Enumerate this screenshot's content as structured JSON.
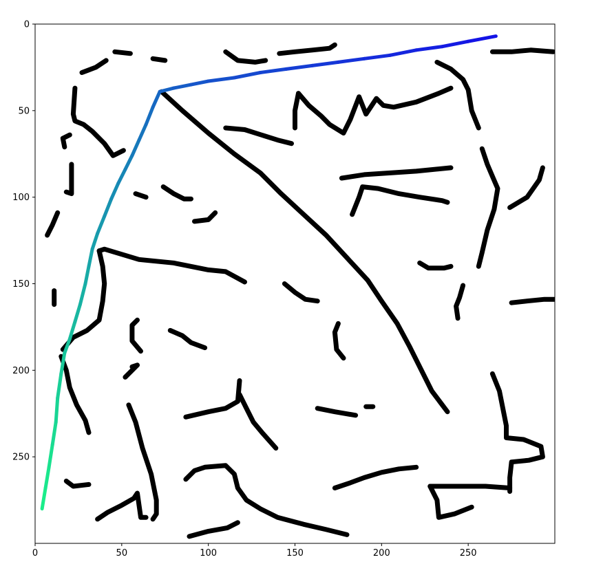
{
  "chart_data": {
    "type": "image-plot",
    "title": "",
    "xlabel": "",
    "ylabel": "",
    "xlim": [
      0,
      300
    ],
    "ylim": [
      300,
      0
    ],
    "xticks": [
      0,
      50,
      100,
      150,
      200,
      250
    ],
    "yticks": [
      0,
      50,
      100,
      150,
      200,
      250
    ],
    "grid": false,
    "ink_color": "#000000",
    "path_color_start": "#1aed8a",
    "path_color_end": "#1414e6",
    "path": [
      [
        4,
        280
      ],
      [
        6,
        268
      ],
      [
        8,
        256
      ],
      [
        10,
        243
      ],
      [
        12,
        230
      ],
      [
        13,
        216
      ],
      [
        15,
        202
      ],
      [
        17,
        190
      ],
      [
        20,
        182
      ],
      [
        23,
        172
      ],
      [
        26,
        162
      ],
      [
        29,
        150
      ],
      [
        31,
        140
      ],
      [
        33,
        130
      ],
      [
        36,
        121
      ],
      [
        40,
        111
      ],
      [
        44,
        101
      ],
      [
        48,
        92
      ],
      [
        52,
        84
      ],
      [
        56,
        76
      ],
      [
        60,
        67
      ],
      [
        64,
        58
      ],
      [
        68,
        48
      ],
      [
        72,
        39
      ],
      [
        80,
        37
      ],
      [
        90,
        35
      ],
      [
        100,
        33
      ],
      [
        115,
        31
      ],
      [
        130,
        28
      ],
      [
        145,
        26
      ],
      [
        160,
        24
      ],
      [
        175,
        22
      ],
      [
        190,
        20
      ],
      [
        205,
        18
      ],
      [
        220,
        15
      ],
      [
        235,
        13
      ],
      [
        250,
        10
      ],
      [
        266,
        7
      ]
    ],
    "strokes": [
      [
        [
          73,
          39
        ],
        [
          85,
          50
        ],
        [
          100,
          63
        ],
        [
          115,
          75
        ],
        [
          130,
          86
        ],
        [
          142,
          98
        ],
        [
          155,
          110
        ],
        [
          168,
          122
        ],
        [
          180,
          135
        ],
        [
          192,
          148
        ],
        [
          200,
          160
        ],
        [
          209,
          173
        ],
        [
          216,
          186
        ],
        [
          222,
          198
        ],
        [
          229,
          212
        ],
        [
          238,
          224
        ]
      ],
      [
        [
          37,
          131
        ],
        [
          40,
          130
        ],
        [
          60,
          136
        ],
        [
          80,
          138
        ],
        [
          100,
          142
        ],
        [
          110,
          143
        ],
        [
          121,
          149
        ]
      ],
      [
        [
          37,
          131
        ],
        [
          39,
          140
        ],
        [
          40,
          150
        ],
        [
          39,
          160
        ],
        [
          37,
          171
        ],
        [
          30,
          177
        ],
        [
          22,
          181
        ],
        [
          16,
          188
        ]
      ],
      [
        [
          15,
          192
        ],
        [
          18,
          200
        ],
        [
          20,
          210
        ],
        [
          24,
          220
        ],
        [
          29,
          229
        ],
        [
          31,
          236
        ]
      ],
      [
        [
          27,
          28
        ],
        [
          35,
          25
        ],
        [
          41,
          21
        ]
      ],
      [
        [
          46,
          16
        ],
        [
          55,
          17
        ]
      ],
      [
        [
          68,
          20
        ],
        [
          75,
          21
        ]
      ],
      [
        [
          23,
          37
        ],
        [
          22,
          52
        ],
        [
          23,
          56
        ],
        [
          28,
          58
        ],
        [
          33,
          62
        ],
        [
          40,
          69
        ],
        [
          45,
          76
        ],
        [
          51,
          73
        ]
      ],
      [
        [
          17,
          71
        ],
        [
          16,
          66
        ],
        [
          20,
          64
        ]
      ],
      [
        [
          21,
          81
        ],
        [
          21,
          98
        ],
        [
          18,
          97
        ]
      ],
      [
        [
          13,
          109
        ],
        [
          10,
          116
        ],
        [
          7,
          122
        ]
      ],
      [
        [
          11,
          154
        ],
        [
          11,
          162
        ]
      ],
      [
        [
          110,
          16
        ],
        [
          117,
          21
        ],
        [
          127,
          22
        ],
        [
          133,
          21
        ]
      ],
      [
        [
          141,
          17
        ],
        [
          150,
          16
        ],
        [
          160,
          15
        ],
        [
          170,
          14
        ],
        [
          173,
          12
        ]
      ],
      [
        [
          232,
          22
        ],
        [
          240,
          26
        ],
        [
          247,
          32
        ],
        [
          250,
          38
        ],
        [
          252,
          50
        ],
        [
          256,
          60
        ]
      ],
      [
        [
          264,
          16
        ],
        [
          275,
          16
        ],
        [
          286,
          15
        ],
        [
          299,
          16
        ]
      ],
      [
        [
          152,
          40
        ],
        [
          158,
          47
        ],
        [
          165,
          53
        ],
        [
          170,
          58
        ],
        [
          178,
          63
        ],
        [
          182,
          55
        ],
        [
          187,
          42
        ],
        [
          191,
          52
        ],
        [
          197,
          43
        ],
        [
          201,
          47
        ],
        [
          207,
          48
        ],
        [
          220,
          45
        ],
        [
          233,
          40
        ],
        [
          240,
          37
        ]
      ],
      [
        [
          152,
          40
        ],
        [
          150,
          50
        ],
        [
          150,
          60
        ]
      ],
      [
        [
          110,
          60
        ],
        [
          121,
          61
        ],
        [
          140,
          67
        ],
        [
          148,
          69
        ]
      ],
      [
        [
          177,
          89
        ],
        [
          190,
          87
        ],
        [
          205,
          86
        ],
        [
          220,
          85
        ],
        [
          240,
          83
        ]
      ],
      [
        [
          183,
          110
        ],
        [
          187,
          100
        ],
        [
          189,
          94
        ],
        [
          198,
          95
        ],
        [
          210,
          98
        ],
        [
          222,
          100
        ],
        [
          235,
          102
        ],
        [
          238,
          103
        ]
      ],
      [
        [
          258,
          72
        ],
        [
          261,
          81
        ],
        [
          264,
          88
        ],
        [
          267,
          95
        ],
        [
          265,
          107
        ],
        [
          261,
          119
        ],
        [
          258,
          132
        ],
        [
          256,
          140
        ]
      ],
      [
        [
          274,
          106
        ],
        [
          284,
          100
        ],
        [
          291,
          90
        ],
        [
          293,
          83
        ]
      ],
      [
        [
          222,
          138
        ],
        [
          227,
          141
        ],
        [
          236,
          141
        ],
        [
          240,
          140
        ]
      ],
      [
        [
          247,
          151
        ],
        [
          245,
          158
        ],
        [
          243,
          163
        ],
        [
          244,
          170
        ]
      ],
      [
        [
          275,
          161
        ],
        [
          284,
          160
        ],
        [
          294,
          159
        ],
        [
          300,
          159
        ]
      ],
      [
        [
          64,
          100
        ],
        [
          58,
          98
        ]
      ],
      [
        [
          74,
          94
        ],
        [
          80,
          98
        ],
        [
          86,
          101
        ],
        [
          90,
          101
        ]
      ],
      [
        [
          92,
          114
        ],
        [
          100,
          113
        ],
        [
          104,
          109
        ]
      ],
      [
        [
          144,
          150
        ],
        [
          150,
          155
        ],
        [
          156,
          159
        ],
        [
          163,
          160
        ]
      ],
      [
        [
          59,
          171
        ],
        [
          56,
          174
        ],
        [
          56,
          183
        ],
        [
          61,
          189
        ]
      ],
      [
        [
          78,
          177
        ],
        [
          85,
          180
        ],
        [
          90,
          184
        ],
        [
          98,
          187
        ]
      ],
      [
        [
          56,
          198
        ],
        [
          59,
          197
        ],
        [
          52,
          204
        ]
      ],
      [
        [
          54,
          220
        ],
        [
          58,
          230
        ],
        [
          62,
          245
        ],
        [
          67,
          260
        ],
        [
          70,
          275
        ],
        [
          70,
          283
        ],
        [
          68,
          286
        ]
      ],
      [
        [
          87,
          227
        ],
        [
          100,
          224
        ],
        [
          110,
          222
        ],
        [
          117,
          218
        ],
        [
          118,
          206
        ]
      ],
      [
        [
          118,
          214
        ],
        [
          122,
          222
        ],
        [
          126,
          230
        ],
        [
          131,
          236
        ],
        [
          139,
          245
        ]
      ],
      [
        [
          175,
          173
        ],
        [
          173,
          178
        ],
        [
          174,
          188
        ],
        [
          178,
          193
        ]
      ],
      [
        [
          163,
          222
        ],
        [
          173,
          224
        ],
        [
          185,
          226
        ]
      ],
      [
        [
          191,
          221
        ],
        [
          195,
          221
        ]
      ],
      [
        [
          87,
          263
        ],
        [
          92,
          258
        ],
        [
          98,
          256
        ],
        [
          110,
          255
        ],
        [
          115,
          260
        ],
        [
          117,
          268
        ],
        [
          122,
          275
        ],
        [
          130,
          280
        ],
        [
          140,
          285
        ],
        [
          155,
          289
        ],
        [
          168,
          292
        ],
        [
          180,
          295
        ]
      ],
      [
        [
          173,
          268
        ],
        [
          182,
          265
        ],
        [
          190,
          262
        ],
        [
          200,
          259
        ],
        [
          210,
          257
        ],
        [
          220,
          256
        ]
      ],
      [
        [
          89,
          296
        ],
        [
          100,
          293
        ],
        [
          111,
          291
        ],
        [
          117,
          288
        ]
      ],
      [
        [
          36,
          286
        ],
        [
          42,
          282
        ],
        [
          50,
          278
        ],
        [
          57,
          274
        ],
        [
          59,
          271
        ],
        [
          61,
          285
        ],
        [
          64,
          285
        ]
      ],
      [
        [
          18,
          264
        ],
        [
          22,
          267
        ],
        [
          31,
          266
        ]
      ],
      [
        [
          264,
          202
        ],
        [
          268,
          212
        ],
        [
          270,
          222
        ],
        [
          272,
          232
        ],
        [
          272,
          239
        ],
        [
          282,
          240
        ],
        [
          292,
          244
        ],
        [
          293,
          250
        ],
        [
          285,
          252
        ],
        [
          275,
          253
        ],
        [
          274,
          262
        ],
        [
          274,
          270
        ]
      ],
      [
        [
          228,
          267
        ],
        [
          240,
          267
        ],
        [
          260,
          267
        ],
        [
          274,
          268
        ]
      ],
      [
        [
          228,
          267
        ],
        [
          232,
          275
        ],
        [
          233,
          285
        ],
        [
          242,
          283
        ],
        [
          252,
          279
        ]
      ]
    ]
  }
}
